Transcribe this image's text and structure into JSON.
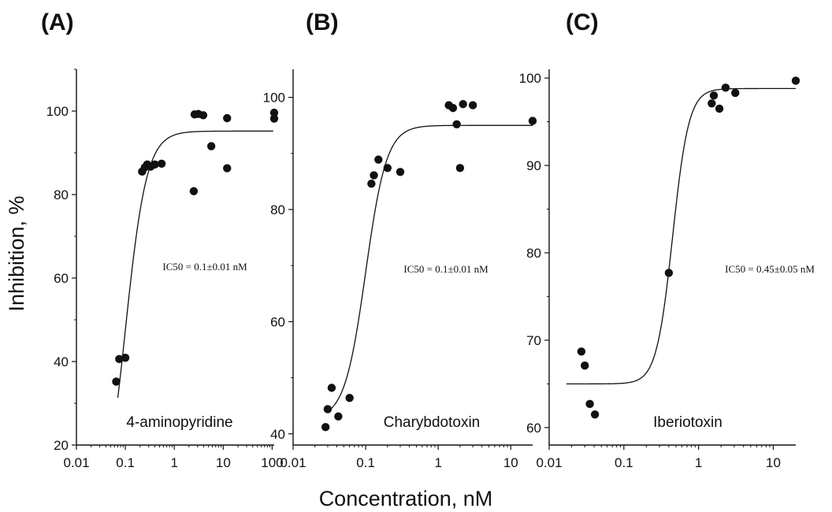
{
  "figure": {
    "ylabel": "Inhibition, %",
    "xlabel": "Concentration, nM"
  },
  "chart_data": [
    {
      "type": "scatter",
      "panel_label": "(A)",
      "title": "4-aminopyridine",
      "annotation": "IC50 = 0.1±0.01 nM",
      "xscale": "log",
      "xlim": [
        0.01,
        110
      ],
      "ylim": [
        20,
        110
      ],
      "xticks": [
        0.01,
        0.1,
        1,
        10,
        100
      ],
      "xtick_labels": [
        "0.01",
        "0.1",
        "1",
        "10",
        "100"
      ],
      "yticks": [
        20,
        40,
        60,
        80,
        100
      ],
      "ytick_labels": [
        "20",
        "40",
        "60",
        "80",
        "100"
      ],
      "points": [
        {
          "x": 0.065,
          "y": 35.2
        },
        {
          "x": 0.075,
          "y": 40.6
        },
        {
          "x": 0.1,
          "y": 40.9
        },
        {
          "x": 0.22,
          "y": 85.5
        },
        {
          "x": 0.25,
          "y": 86.5
        },
        {
          "x": 0.28,
          "y": 87.2
        },
        {
          "x": 0.33,
          "y": 86.7
        },
        {
          "x": 0.4,
          "y": 87.2
        },
        {
          "x": 0.55,
          "y": 87.4
        },
        {
          "x": 2.5,
          "y": 80.8
        },
        {
          "x": 2.6,
          "y": 99.2
        },
        {
          "x": 3.1,
          "y": 99.3
        },
        {
          "x": 3.9,
          "y": 99.0
        },
        {
          "x": 5.7,
          "y": 91.6
        },
        {
          "x": 12,
          "y": 98.3
        },
        {
          "x": 12,
          "y": 86.3
        },
        {
          "x": 110,
          "y": 99.6
        },
        {
          "x": 110,
          "y": 98.2
        }
      ],
      "fit": {
        "bottom": 0,
        "top": 95.2,
        "ic50": 0.1,
        "hill": 2.0,
        "x_from": 0.07,
        "x_to": 105
      }
    },
    {
      "type": "scatter",
      "panel_label": "(B)",
      "title": "Charybdotoxin",
      "annotation": "IC50 = 0.1±0.01 nM",
      "xscale": "log",
      "xlim": [
        0.01,
        20
      ],
      "ylim": [
        38,
        105
      ],
      "xticks": [
        0.01,
        0.1,
        1,
        10
      ],
      "xtick_labels": [
        "0.01",
        "0.1",
        "1",
        "10"
      ],
      "yticks": [
        40,
        60,
        80,
        100
      ],
      "ytick_labels": [
        "40",
        "60",
        "80",
        "100"
      ],
      "points": [
        {
          "x": 0.028,
          "y": 41.2
        },
        {
          "x": 0.03,
          "y": 44.4
        },
        {
          "x": 0.034,
          "y": 48.2
        },
        {
          "x": 0.042,
          "y": 43.1
        },
        {
          "x": 0.06,
          "y": 46.4
        },
        {
          "x": 0.12,
          "y": 84.6
        },
        {
          "x": 0.13,
          "y": 86.1
        },
        {
          "x": 0.15,
          "y": 88.9
        },
        {
          "x": 0.2,
          "y": 87.4
        },
        {
          "x": 0.3,
          "y": 86.7
        },
        {
          "x": 1.4,
          "y": 98.6
        },
        {
          "x": 1.6,
          "y": 98.1
        },
        {
          "x": 1.8,
          "y": 95.2
        },
        {
          "x": 2.0,
          "y": 87.4
        },
        {
          "x": 2.2,
          "y": 98.8
        },
        {
          "x": 3.0,
          "y": 98.6
        },
        {
          "x": 20,
          "y": 95.8
        }
      ],
      "fit": {
        "bottom": 42.6,
        "top": 95.0,
        "ic50": 0.1,
        "hill": 3.0,
        "x_from": 0.03,
        "x_to": 20
      }
    },
    {
      "type": "scatter",
      "panel_label": "(C)",
      "title": "Iberiotoxin",
      "annotation": "IC50 = 0.45±0.05 nM",
      "xscale": "log",
      "xlim": [
        0.01,
        20
      ],
      "ylim": [
        58,
        101
      ],
      "xticks": [
        0.01,
        0.1,
        1,
        10
      ],
      "xtick_labels": [
        "0.01",
        "0.1",
        "1",
        "10"
      ],
      "yticks": [
        60,
        70,
        80,
        90,
        100
      ],
      "ytick_labels": [
        "60",
        "70",
        "80",
        "90",
        "100"
      ],
      "points": [
        {
          "x": 0.027,
          "y": 68.7
        },
        {
          "x": 0.03,
          "y": 67.1
        },
        {
          "x": 0.035,
          "y": 62.7
        },
        {
          "x": 0.041,
          "y": 61.5
        },
        {
          "x": 0.4,
          "y": 77.7
        },
        {
          "x": 1.5,
          "y": 97.1
        },
        {
          "x": 1.6,
          "y": 98.0
        },
        {
          "x": 1.9,
          "y": 96.5
        },
        {
          "x": 2.3,
          "y": 98.9
        },
        {
          "x": 3.1,
          "y": 98.3
        },
        {
          "x": 20,
          "y": 99.7
        }
      ],
      "fit": {
        "bottom": 65.0,
        "top": 98.8,
        "ic50": 0.45,
        "hill": 4.0,
        "x_from": 0.017,
        "x_to": 20
      }
    }
  ]
}
